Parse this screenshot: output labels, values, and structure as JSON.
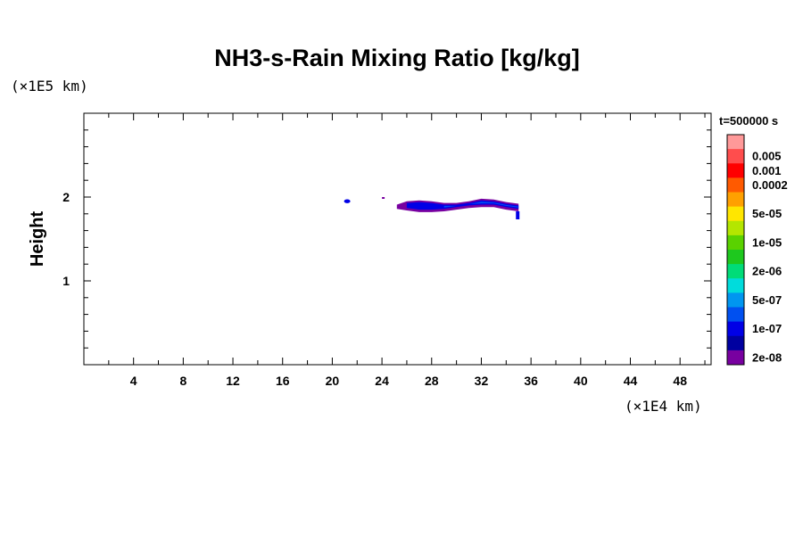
{
  "chart_data": {
    "type": "heatmap",
    "title": "NH3-s-Rain Mixing Ratio [kg/kg]",
    "ylabel": "Height",
    "x_unit": "(×1E4 km)",
    "y_unit": "(×1E5 km)",
    "xlim": [
      0,
      50.5
    ],
    "ylim": [
      0,
      3
    ],
    "x_ticks": [
      4,
      8,
      12,
      16,
      20,
      24,
      28,
      32,
      36,
      40,
      44,
      48
    ],
    "y_ticks": [
      1,
      2
    ],
    "time_label": "t=500000 s",
    "colorbar": {
      "labels": [
        "0.005",
        "0.001",
        "0.0002",
        "5e-05",
        "1e-05",
        "2e-06",
        "5e-07",
        "1e-07",
        "2e-08"
      ],
      "colors": [
        "#ff9999",
        "#ff4d4d",
        "#ff0000",
        "#ff5a00",
        "#ffa000",
        "#ffe600",
        "#b4e600",
        "#5ad200",
        "#1ec81e",
        "#00dc78",
        "#00dcdc",
        "#0096f0",
        "#0050f0",
        "#0000e6",
        "#0000a0",
        "#7800a0"
      ]
    },
    "feature": {
      "description_levels": [
        "2e-08",
        "1e-07"
      ],
      "x_range": [
        20.8,
        35.2
      ],
      "y_range": [
        1.78,
        1.96
      ],
      "profile": [
        {
          "x": 25.2,
          "top": 1.91,
          "bottom": 1.86
        },
        {
          "x": 26.0,
          "top": 1.95,
          "bottom": 1.84
        },
        {
          "x": 27.0,
          "top": 1.96,
          "bottom": 1.82
        },
        {
          "x": 28.0,
          "top": 1.95,
          "bottom": 1.82
        },
        {
          "x": 29.0,
          "top": 1.93,
          "bottom": 1.83
        },
        {
          "x": 30.0,
          "top": 1.93,
          "bottom": 1.85
        },
        {
          "x": 31.0,
          "top": 1.95,
          "bottom": 1.87
        },
        {
          "x": 32.0,
          "top": 1.98,
          "bottom": 1.88
        },
        {
          "x": 33.0,
          "top": 1.97,
          "bottom": 1.88
        },
        {
          "x": 34.0,
          "top": 1.94,
          "bottom": 1.85
        },
        {
          "x": 35.0,
          "top": 1.92,
          "bottom": 1.83
        }
      ]
    }
  }
}
